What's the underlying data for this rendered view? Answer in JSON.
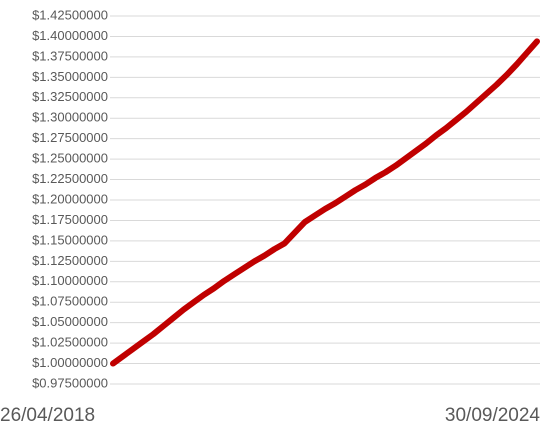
{
  "chart_data": {
    "type": "line",
    "categories": [
      "26/04/2018",
      null,
      null,
      null,
      null,
      null,
      null,
      null,
      null,
      null,
      null,
      null,
      null,
      null,
      null,
      null,
      null,
      null,
      null,
      null,
      null,
      null,
      null,
      null,
      null,
      null,
      null,
      null,
      null,
      null,
      null,
      null,
      null,
      null,
      null,
      null,
      null,
      null,
      null,
      null,
      null,
      null,
      "30/09/2024"
    ],
    "series": [
      {
        "color": "#c00000",
        "values": [
          1.0,
          1.009,
          1.018,
          1.027,
          1.036,
          1.046,
          1.056,
          1.066,
          1.075,
          1.084,
          1.092,
          1.101,
          1.109,
          1.117,
          1.125,
          1.132,
          1.14,
          1.147,
          1.16,
          1.173,
          1.181,
          1.189,
          1.196,
          1.204,
          1.212,
          1.219,
          1.227,
          1.234,
          1.242,
          1.251,
          1.26,
          1.269,
          1.279,
          1.288,
          1.298,
          1.308,
          1.319,
          1.33,
          1.341,
          1.353,
          1.366,
          1.38,
          1.394
        ]
      }
    ],
    "ylim": [
      0.975,
      1.425
    ],
    "yticks": [
      {
        "value": 0.975,
        "label": "$0.97500000"
      },
      {
        "value": 1.0,
        "label": "$1.00000000"
      },
      {
        "value": 1.025,
        "label": "$1.02500000"
      },
      {
        "value": 1.05,
        "label": "$1.05000000"
      },
      {
        "value": 1.075,
        "label": "$1.07500000"
      },
      {
        "value": 1.1,
        "label": "$1.10000000"
      },
      {
        "value": 1.125,
        "label": "$1.12500000"
      },
      {
        "value": 1.15,
        "label": "$1.15000000"
      },
      {
        "value": 1.175,
        "label": "$1.17500000"
      },
      {
        "value": 1.2,
        "label": "$1.20000000"
      },
      {
        "value": 1.225,
        "label": "$1.22500000"
      },
      {
        "value": 1.25,
        "label": "$1.25000000"
      },
      {
        "value": 1.275,
        "label": "$1.27500000"
      },
      {
        "value": 1.3,
        "label": "$1.30000000"
      },
      {
        "value": 1.325,
        "label": "$1.32500000"
      },
      {
        "value": 1.35,
        "label": "$1.35000000"
      },
      {
        "value": 1.375,
        "label": "$1.37500000"
      },
      {
        "value": 1.4,
        "label": "$1.40000000"
      },
      {
        "value": 1.425,
        "label": "$1.42500000"
      }
    ],
    "grid": true
  }
}
